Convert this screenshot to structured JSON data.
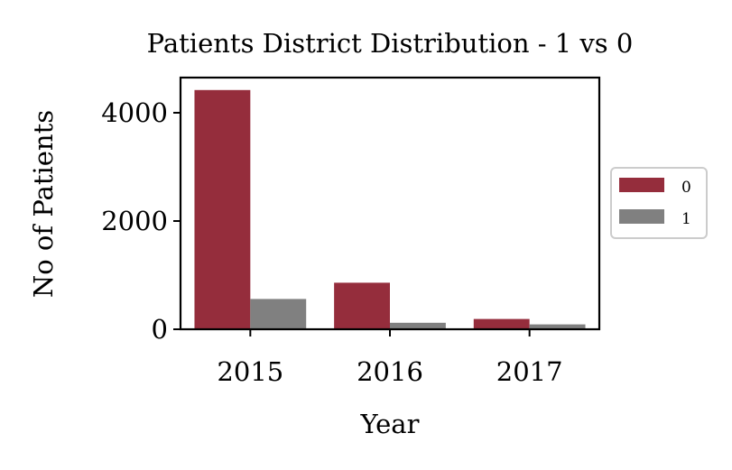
{
  "chart_data": {
    "type": "bar",
    "title": "Patients District Distribution - 1 vs 0",
    "xlabel": "Year",
    "ylabel": "No of Patients",
    "categories": [
      "2015",
      "2016",
      "2017"
    ],
    "series": [
      {
        "name": "0",
        "color": "#952d3c",
        "values": [
          4420,
          860,
          190
        ]
      },
      {
        "name": "1",
        "color": "#808080",
        "values": [
          560,
          120,
          90
        ]
      }
    ],
    "ylim": [
      0,
      4650
    ],
    "yticks": [
      0,
      2000,
      4000
    ],
    "ytick_labels": [
      "0",
      "2000",
      "4000"
    ],
    "grid": false,
    "legend_position": "center-right, outside plot"
  }
}
